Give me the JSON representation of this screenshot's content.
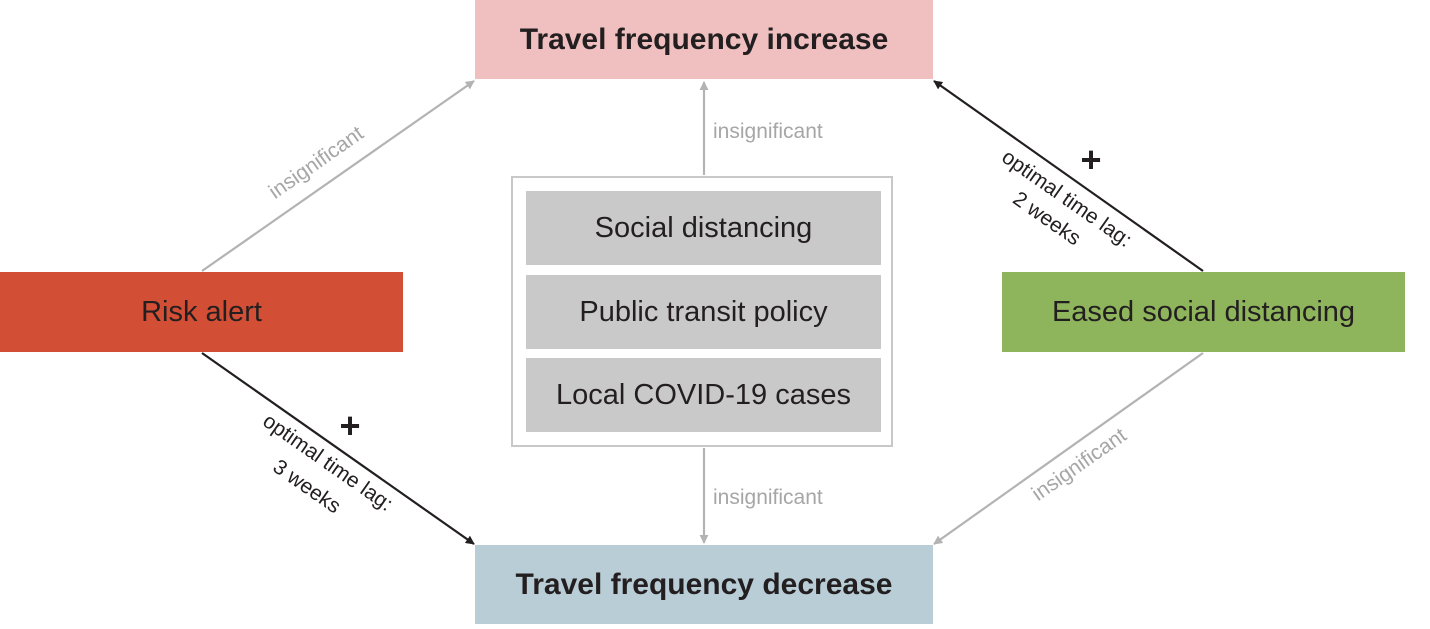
{
  "nodes": {
    "top": "Travel frequency increase",
    "bottom": "Travel frequency decrease",
    "left": "Risk alert",
    "right": "Eased social distancing"
  },
  "factors": [
    "Social distancing",
    "Public transit policy",
    "Local COVID-19 cases"
  ],
  "edges": {
    "left_to_top": "insignificant",
    "center_to_top": "insignificant",
    "center_to_bottom": "insignificant",
    "right_to_bottom": "insignificant",
    "left_to_bottom": {
      "sign": "+",
      "line1": "optimal time lag:",
      "line2": "3 weeks"
    },
    "right_to_top": {
      "sign": "+",
      "line1": "optimal time lag:",
      "line2": "2 weeks"
    }
  },
  "colors": {
    "top": "#efc0bf",
    "bottom": "#b9cdd6",
    "left": "#d24f35",
    "right": "#8eb45c",
    "factor": "#c9c9c9",
    "significant_arrow": "#231f20",
    "insignificant_arrow": "#b3b3b3"
  }
}
